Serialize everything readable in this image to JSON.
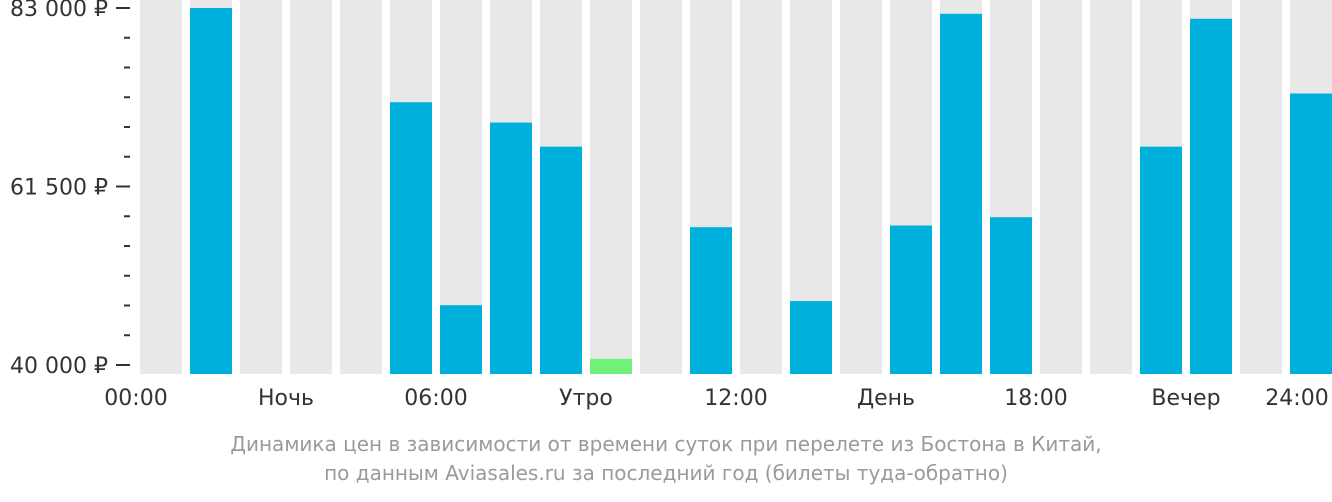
{
  "chart_data": {
    "type": "bar",
    "categories": [
      "00:00",
      "01:00",
      "02:00",
      "03:00",
      "04:00",
      "05:00",
      "06:00",
      "07:00",
      "08:00",
      "09:00",
      "10:00",
      "11:00",
      "12:00",
      "13:00",
      "14:00",
      "15:00",
      "16:00",
      "17:00",
      "18:00",
      "19:00",
      "20:00",
      "21:00",
      "22:00",
      "23:00"
    ],
    "values": [
      null,
      83000,
      null,
      null,
      null,
      71650,
      47200,
      69200,
      66300,
      40750,
      null,
      56600,
      null,
      47700,
      null,
      56800,
      82300,
      57800,
      null,
      null,
      66300,
      81700,
      null,
      72700
    ],
    "bar_colors": {
      "default": "#00b0dc",
      "min": "#73f07c",
      "background": "#e8e8e8"
    },
    "min_index": 9,
    "ylim": [
      40000,
      83000
    ],
    "yticks": [
      {
        "value": 40000,
        "label": "40 000 ₽"
      },
      {
        "value": 61500,
        "label": "61 500 ₽"
      },
      {
        "value": 83000,
        "label": "83 000 ₽"
      }
    ],
    "y_minor_ticks": [
      43583,
      47167,
      50750,
      54333,
      57917,
      65083,
      68667,
      72250,
      75833,
      79417
    ],
    "xticks": [
      {
        "index": 0,
        "label": "00:00"
      },
      {
        "index": 3,
        "label": "Ночь"
      },
      {
        "index": 6,
        "label": "06:00"
      },
      {
        "index": 9,
        "label": "Утро"
      },
      {
        "index": 12,
        "label": "12:00"
      },
      {
        "index": 15,
        "label": "День"
      },
      {
        "index": 18,
        "label": "18:00"
      },
      {
        "index": 21,
        "label": "Вечер"
      },
      {
        "index": 24,
        "label": "24:00"
      }
    ],
    "caption": [
      "Динамика цен в зависимости от времени суток при перелете из Бостона в Китай,",
      "по данным Aviasales.ru за последний год (билеты туда-обратно)"
    ],
    "grid": false,
    "legend": "none"
  }
}
